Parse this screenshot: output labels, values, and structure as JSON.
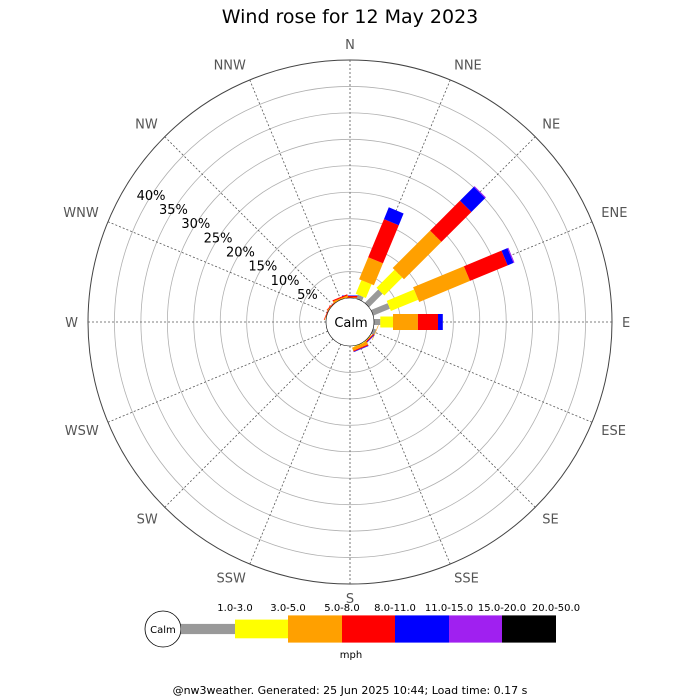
{
  "chart_data": {
    "type": "wind-rose",
    "title": "Wind rose for 12 May 2023",
    "directions": [
      "N",
      "NNE",
      "NE",
      "ENE",
      "E",
      "ESE",
      "SE",
      "SSE",
      "S",
      "SSW",
      "SW",
      "WSW",
      "W",
      "WNW",
      "NW",
      "NNW"
    ],
    "ring_labels": [
      "5%",
      "10%",
      "15%",
      "20%",
      "25%",
      "30%",
      "35%",
      "40%"
    ],
    "ring_values": [
      5,
      10,
      15,
      20,
      25,
      30,
      35,
      40
    ],
    "r_max_percent": 45,
    "calm_label": "Calm",
    "speed_bins": [
      {
        "label": "1.0-3.0",
        "color": "#999999"
      },
      {
        "label": "3.0-5.0",
        "color": "#ffff00"
      },
      {
        "label": "5.0-8.0",
        "color": "#ffa000"
      },
      {
        "label": "8.0-11.0",
        "color": "#ff0000"
      },
      {
        "label": "11.0-15.0",
        "color": "#0000ff"
      },
      {
        "label": "15.0-20.0",
        "color": "#a020f0"
      },
      {
        "label": "20.0-50.0",
        "color": "#000000"
      }
    ],
    "unit": "mph",
    "bars": [
      {
        "direction": "N",
        "values": [
          0,
          0,
          0.1,
          0.3,
          0.1,
          0,
          0
        ]
      },
      {
        "direction": "NNE",
        "values": [
          0.8,
          2.8,
          4.5,
          7.8,
          2.4,
          0,
          0
        ]
      },
      {
        "direction": "NE",
        "values": [
          3.6,
          4.8,
          10.0,
          8.0,
          3.7,
          0.2,
          0
        ]
      },
      {
        "direction": "ENE",
        "values": [
          3.4,
          5.6,
          10.4,
          7.7,
          1.2,
          0.2,
          0
        ]
      },
      {
        "direction": "E",
        "values": [
          1.2,
          2.4,
          4.7,
          3.8,
          0.9,
          0,
          0
        ]
      },
      {
        "direction": "ESE",
        "values": [
          0.6,
          0,
          0.1,
          0,
          0,
          0,
          0
        ]
      },
      {
        "direction": "SE",
        "values": [
          0,
          0.1,
          0.1,
          0.2,
          0.1,
          0,
          0
        ]
      },
      {
        "direction": "SSE",
        "values": [
          0,
          0.1,
          0.6,
          0.2,
          0.1,
          0,
          0
        ]
      },
      {
        "direction": "W",
        "values": [
          0,
          0,
          0,
          0,
          0,
          0,
          0
        ]
      },
      {
        "direction": "WNW",
        "values": [
          0,
          0,
          0.1,
          0.1,
          0,
          0,
          0
        ]
      },
      {
        "direction": "NW",
        "values": [
          0,
          0,
          0.1,
          0.1,
          0,
          0,
          0
        ]
      },
      {
        "direction": "NNW",
        "values": [
          0,
          0,
          0.3,
          0.2,
          0,
          0,
          0
        ]
      }
    ],
    "footer": "@nw3weather. Generated: 25 Jun 2025 10:44; Load time: 0.17 s"
  }
}
